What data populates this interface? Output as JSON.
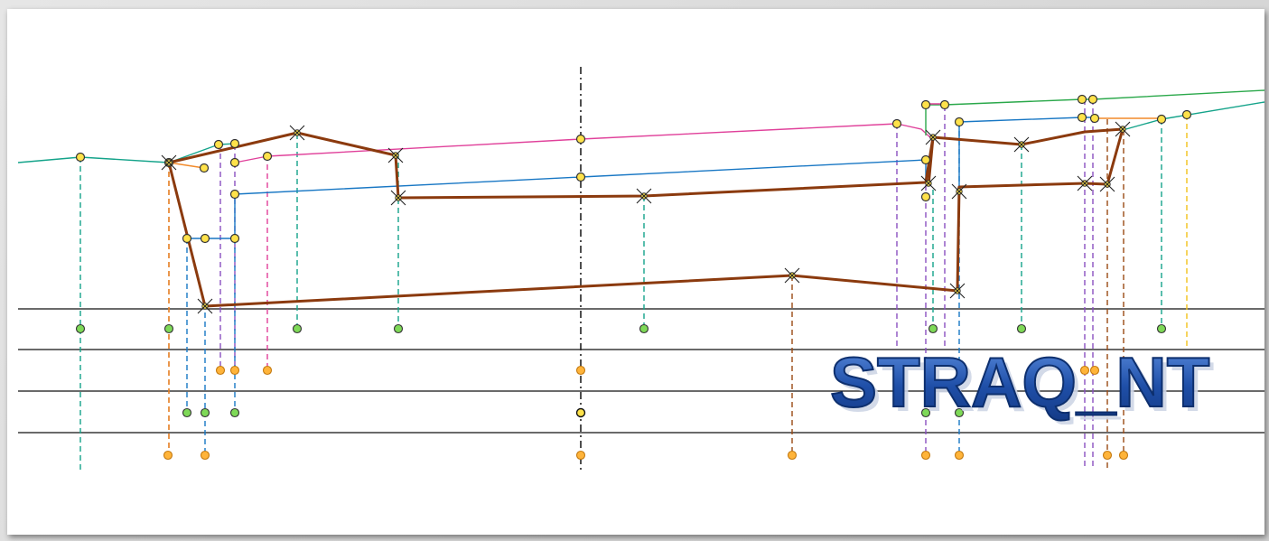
{
  "logo": {
    "text": "STRAQ_NT",
    "fill": "#1f4fa8",
    "stroke": "#0d2f6e"
  },
  "colors": {
    "profile": "#8b3a0e",
    "terrain": "#14a38a",
    "road_top": "#e0409a",
    "road_base": "#1877c4",
    "right_ground": "#2aa84a",
    "axis": "#222222",
    "point_fill": "#ffe24a",
    "point_stroke": "#333333",
    "green_point": "#7ed957",
    "orange_point": "#ffb43a",
    "lead_teal": "#14a38a",
    "lead_purple": "#8a4fc0",
    "lead_pink": "#e0409a",
    "lead_blue": "#1877c4",
    "lead_brown": "#9a4a14",
    "lead_orange": "#f28a2a",
    "lead_yellow": "#f2c21a"
  }
}
